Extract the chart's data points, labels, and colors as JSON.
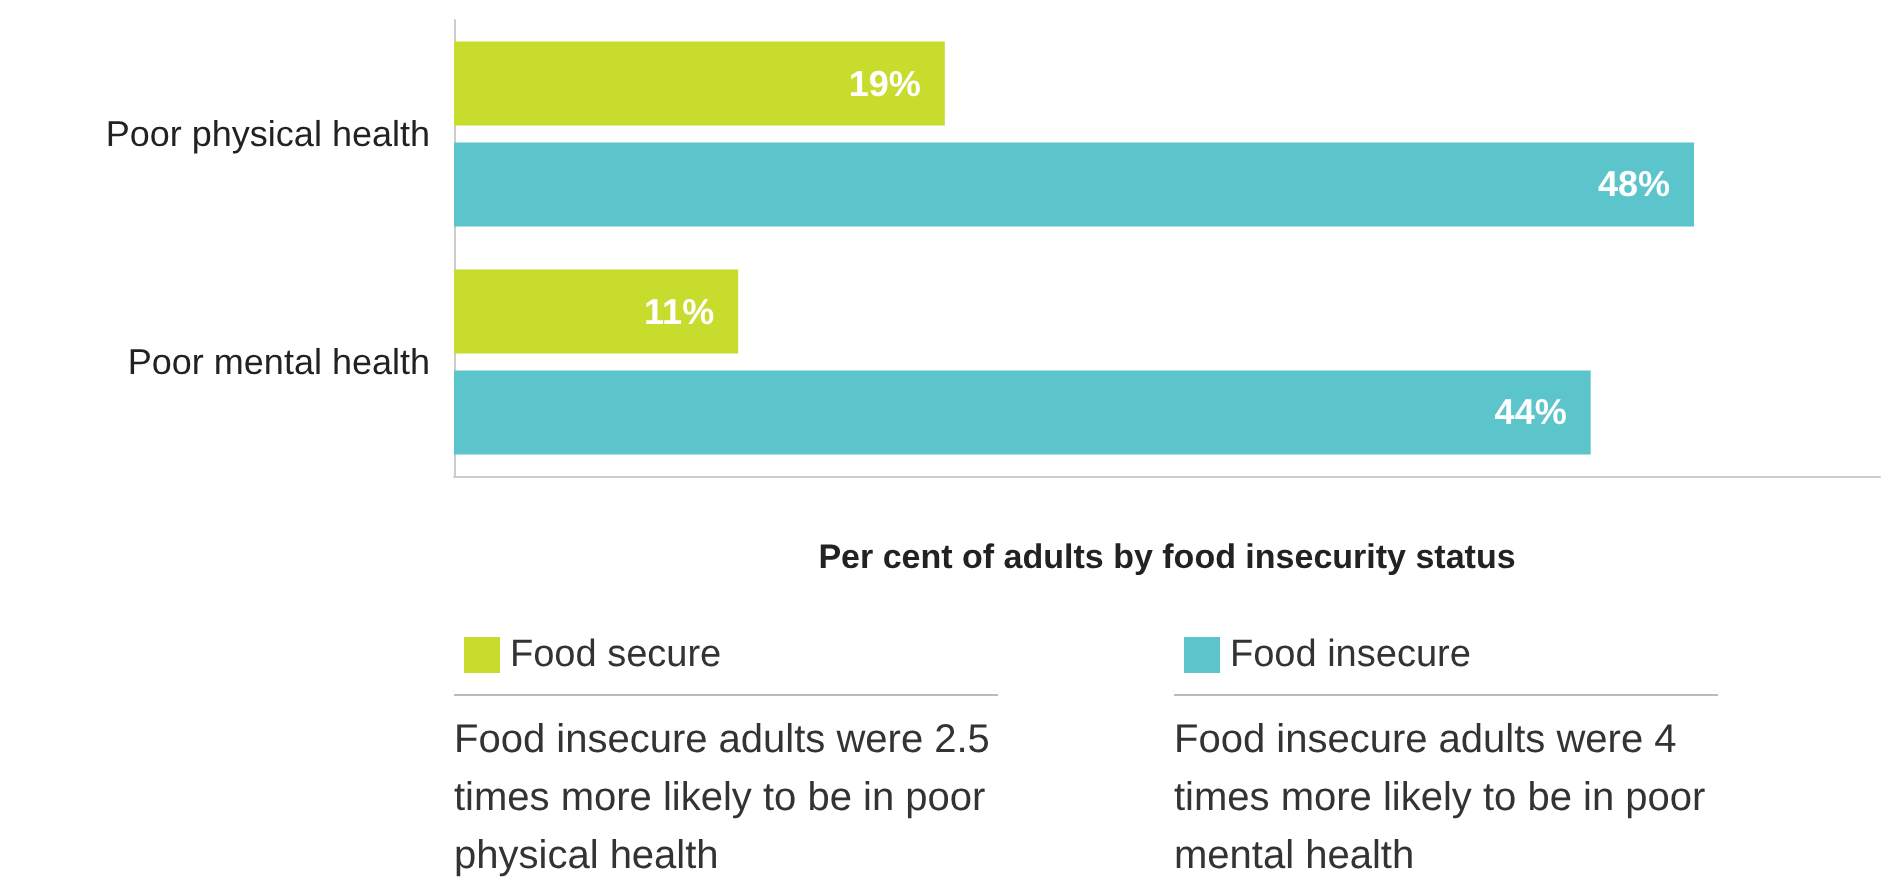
{
  "chart_data": {
    "type": "bar",
    "orientation": "horizontal",
    "xlabel": "Per cent of adults by food insecurity status",
    "categories": [
      "Poor physical health",
      "Poor mental health"
    ],
    "series": [
      {
        "name": "Food secure",
        "color": "#c8dc2e",
        "values": [
          19,
          11
        ],
        "value_labels": [
          "19%",
          "11%"
        ]
      },
      {
        "name": "Food insecure",
        "color": "#5bc5cb",
        "values": [
          48,
          44
        ],
        "value_labels": [
          "48%",
          "44%"
        ]
      }
    ],
    "grid": false,
    "legend": "bottom",
    "annotations": [
      "Food insecure adults were 2.5  times more likely to be in poor physical health",
      "Food insecure adults were 4 times more likely to be in poor mental health"
    ]
  }
}
